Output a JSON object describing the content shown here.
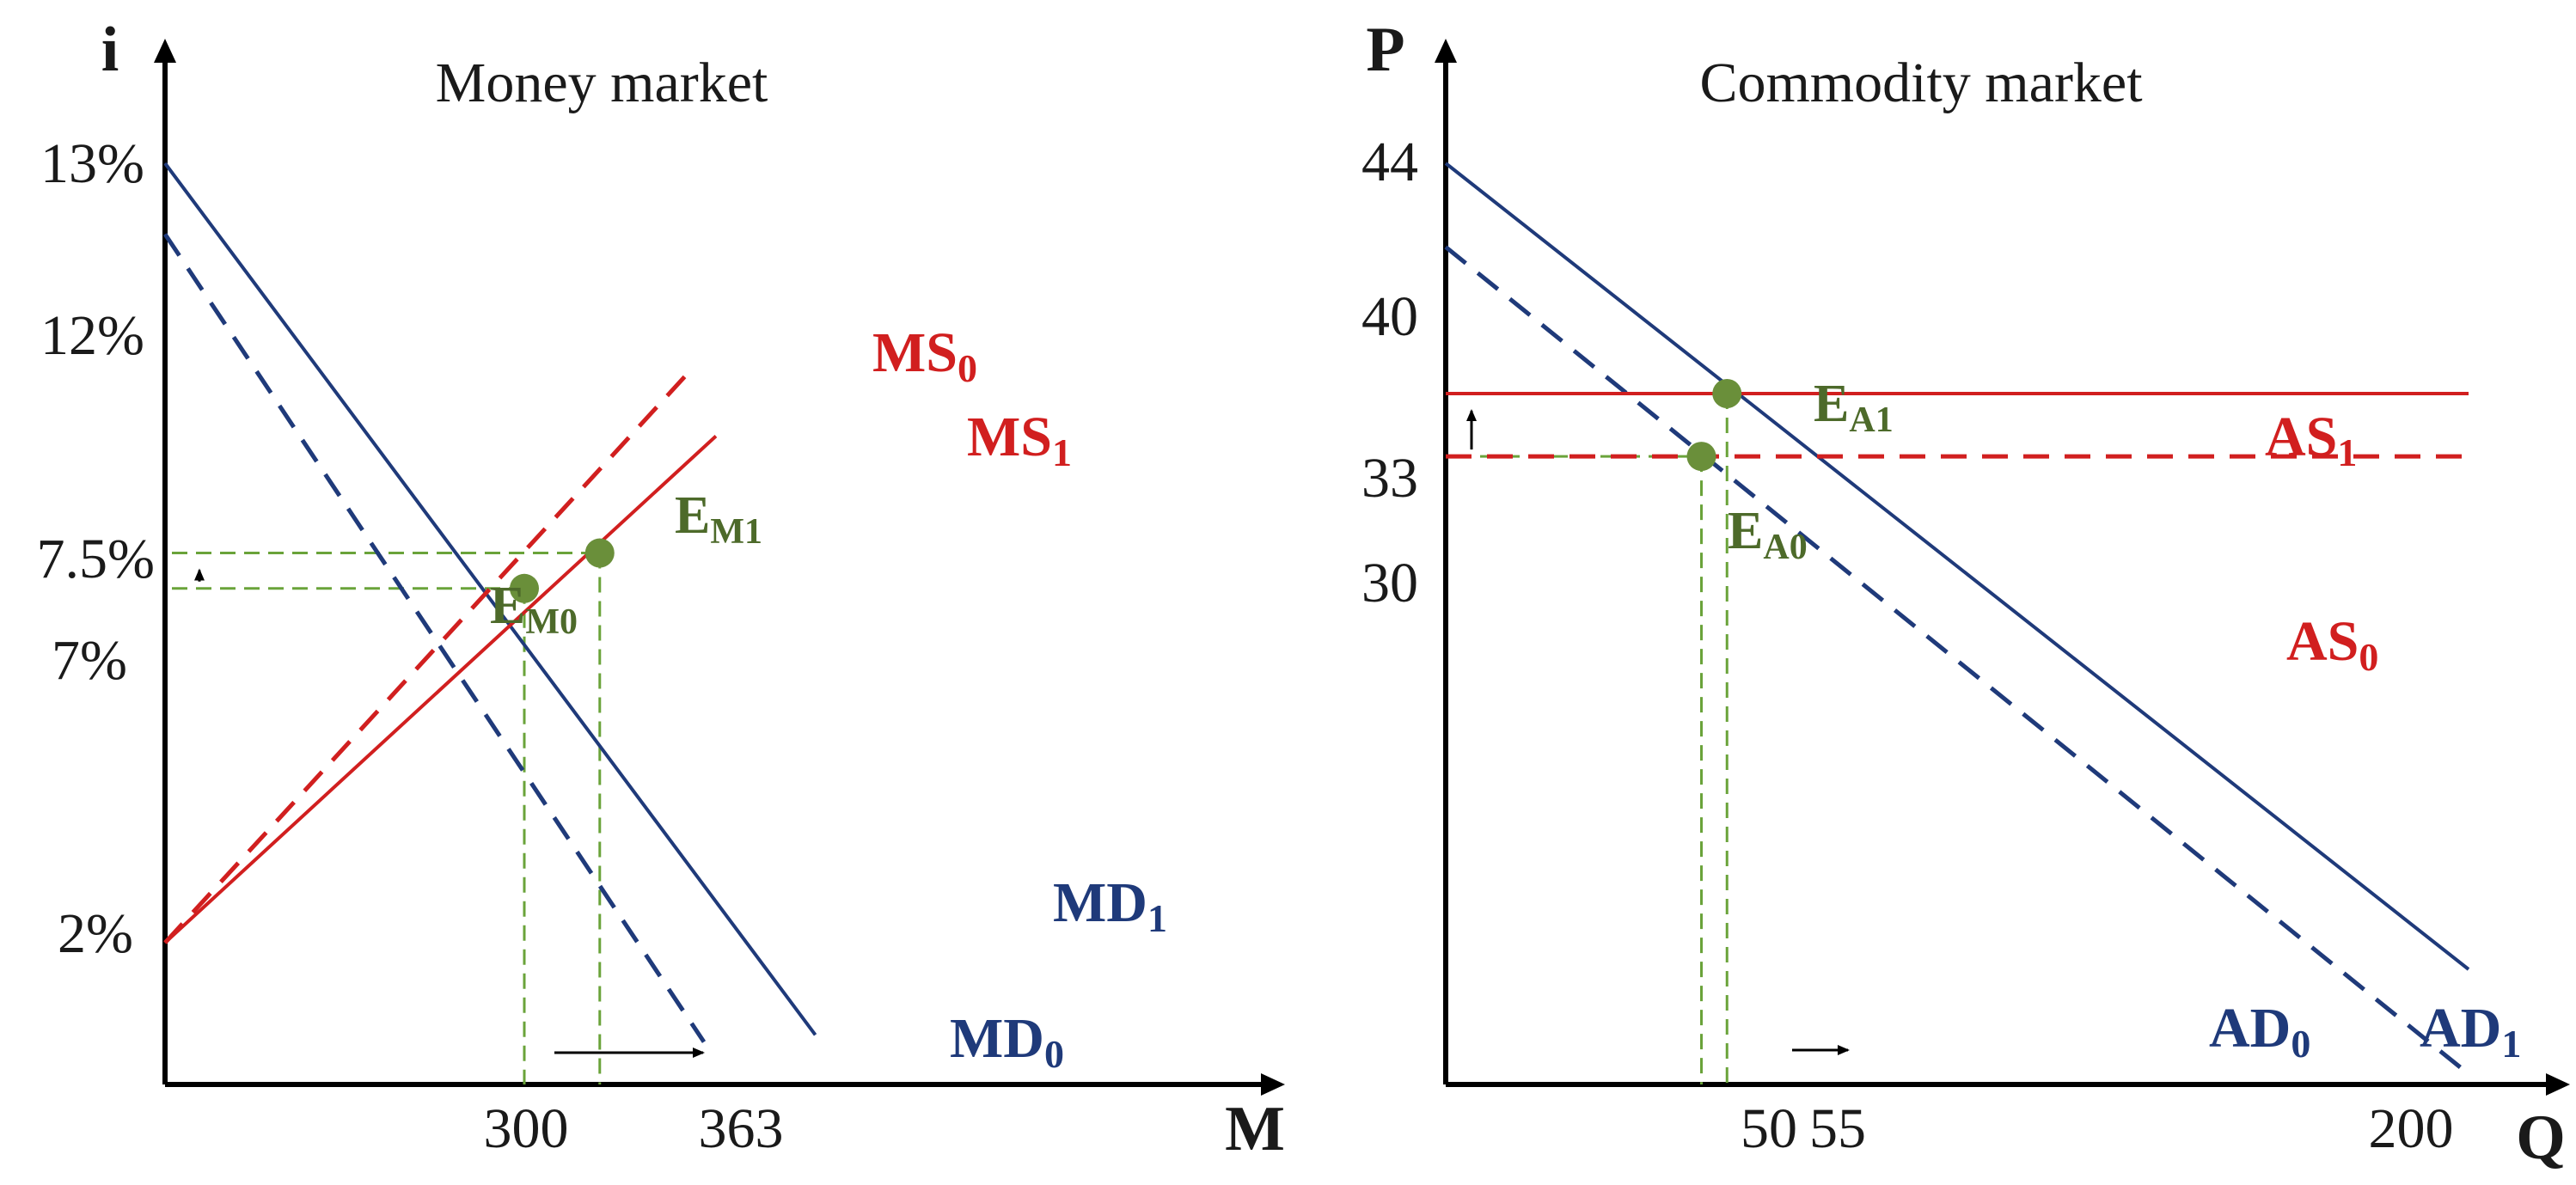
{
  "colors": {
    "axis": "#000000",
    "demand": "#1f3a7a",
    "supply": "#d11f1f",
    "guide": "#6aa33a",
    "equilibrium": "#6a8f3a",
    "equilibrium_label": "#4d6a2a"
  },
  "chart_data": [
    {
      "type": "line",
      "title": "Money market",
      "xlabel": "M",
      "ylabel": "i",
      "x_ticks": [
        "300",
        "363"
      ],
      "y_ticks": [
        "13%",
        "12%",
        "7.5%",
        "7%",
        "2%"
      ],
      "series": [
        {
          "name": "MD1",
          "main": "MD",
          "sub": "1",
          "style": "solid",
          "color": "demand",
          "points": [
            [
              0,
              13
            ],
            [
              543,
              0.7
            ]
          ]
        },
        {
          "name": "MD0",
          "main": "MD",
          "sub": "0",
          "style": "dashed",
          "color": "demand",
          "points": [
            [
              0,
              12
            ],
            [
              450,
              0.6
            ]
          ]
        },
        {
          "name": "MS0",
          "main": "MS",
          "sub": "0",
          "style": "dashed",
          "color": "supply",
          "points": [
            [
              0,
              2
            ],
            [
              440,
              10.1
            ]
          ]
        },
        {
          "name": "MS1",
          "main": "MS",
          "sub": "1",
          "style": "solid",
          "color": "supply",
          "points": [
            [
              0,
              2
            ],
            [
              460,
              9.15
            ]
          ]
        }
      ],
      "equilibria": [
        {
          "name": "EM0",
          "main": "E",
          "sub": "M0",
          "x": 300,
          "y": 7
        },
        {
          "name": "EM1",
          "main": "E",
          "sub": "M1",
          "x": 363,
          "y": 7.5
        }
      ],
      "arrows": [
        {
          "direction": "up",
          "from": 7,
          "to": 7.5
        },
        {
          "direction": "right",
          "from": 300,
          "to": 363
        }
      ]
    },
    {
      "type": "line",
      "title": "Commodity market",
      "xlabel": "Q",
      "ylabel": "P",
      "x_ticks": [
        "50",
        "55",
        "200"
      ],
      "y_ticks": [
        "44",
        "40",
        "33",
        "30"
      ],
      "series": [
        {
          "name": "AD1",
          "main": "AD",
          "sub": "1",
          "style": "solid",
          "color": "demand",
          "points": [
            [
              0,
              44
            ],
            [
              200,
              5.5
            ]
          ]
        },
        {
          "name": "AD0",
          "main": "AD",
          "sub": "0",
          "style": "dashed",
          "color": "demand",
          "points": [
            [
              0,
              40
            ],
            [
              200,
              0.5
            ]
          ]
        },
        {
          "name": "AS1",
          "main": "AS",
          "sub": "1",
          "style": "solid",
          "color": "supply",
          "points": [
            [
              0,
              33
            ],
            [
              200,
              33
            ]
          ]
        },
        {
          "name": "AS0",
          "main": "AS",
          "sub": "0",
          "style": "dashed",
          "color": "supply",
          "points": [
            [
              0,
              30
            ],
            [
              200,
              30
            ]
          ]
        }
      ],
      "equilibria": [
        {
          "name": "EA0",
          "main": "E",
          "sub": "A0",
          "x": 50,
          "y": 30
        },
        {
          "name": "EA1",
          "main": "E",
          "sub": "A1",
          "x": 55,
          "y": 33
        }
      ],
      "arrows": [
        {
          "direction": "up",
          "from": 30,
          "to": 33
        },
        {
          "direction": "right",
          "from": 50,
          "to": 55
        }
      ]
    }
  ]
}
